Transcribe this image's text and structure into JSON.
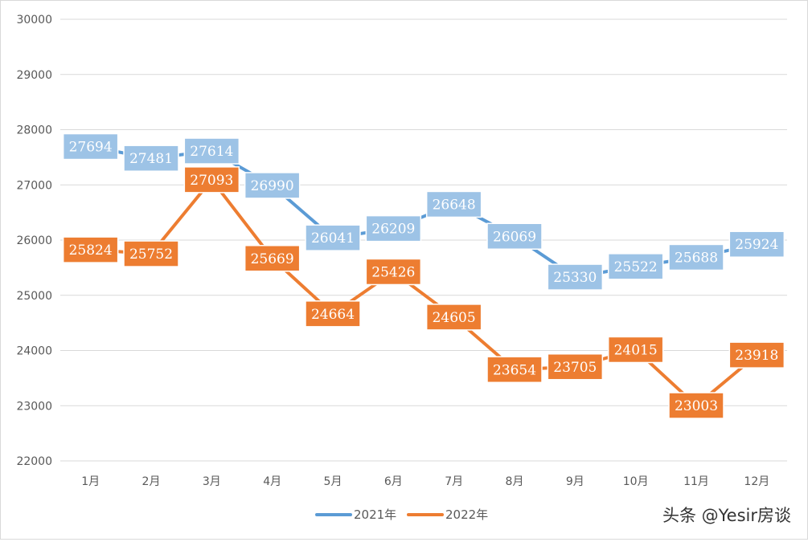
{
  "chart_data": {
    "type": "line",
    "title": "",
    "xlabel": "",
    "ylabel": "",
    "categories": [
      "1月",
      "2月",
      "3月",
      "4月",
      "5月",
      "6月",
      "7月",
      "8月",
      "9月",
      "10月",
      "11月",
      "12月"
    ],
    "ylim": [
      22000,
      30000
    ],
    "yticks": [
      22000,
      23000,
      24000,
      25000,
      26000,
      27000,
      28000,
      29000,
      30000
    ],
    "grid": true,
    "legend_position": "bottom",
    "data_labels": true,
    "series": [
      {
        "name": "2021年",
        "color": "#5b9bd5",
        "label_color": "#9dc3e6",
        "values": [
          27694,
          27481,
          27614,
          26990,
          26041,
          26209,
          26648,
          26069,
          25330,
          25522,
          25688,
          25924
        ]
      },
      {
        "name": "2022年",
        "color": "#ed7d31",
        "label_color": "#ed7d31",
        "values": [
          25824,
          25752,
          27093,
          25669,
          24664,
          25426,
          24605,
          23654,
          23705,
          24015,
          23003,
          23918
        ]
      }
    ]
  },
  "watermark": {
    "text": "头条 @Yesir房谈"
  }
}
